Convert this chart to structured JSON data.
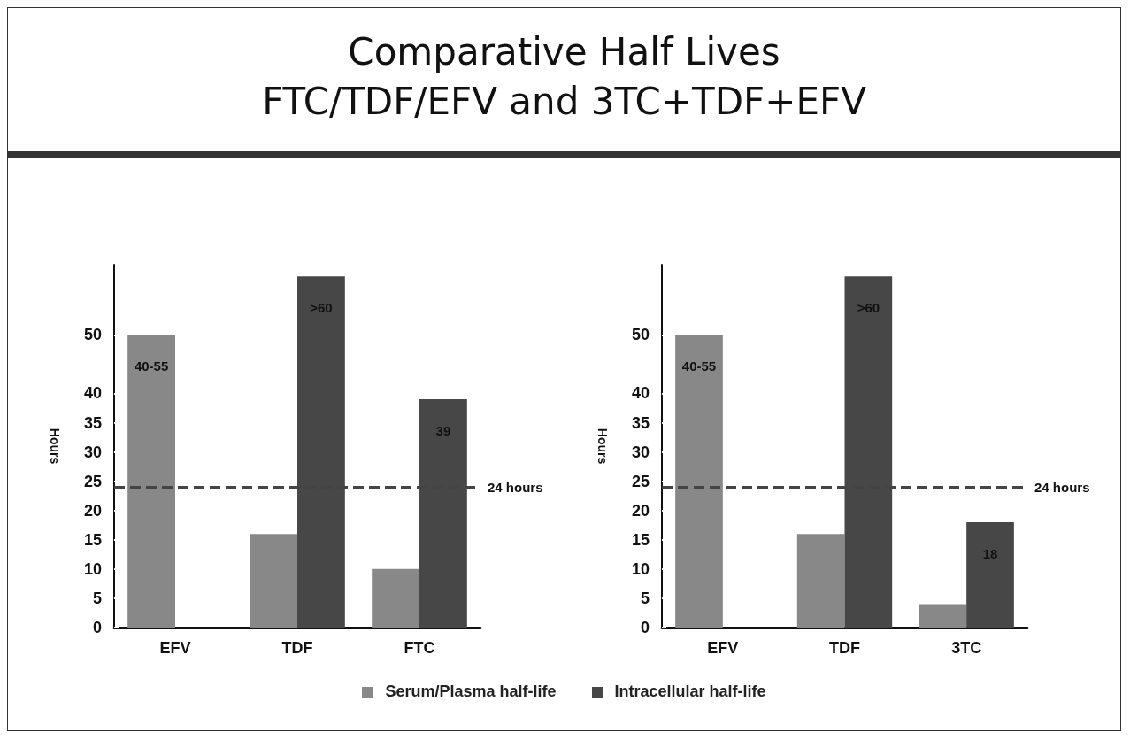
{
  "chart_data": [
    {
      "type": "bar",
      "title": "Comparative Half Lives",
      "subtitle": "FTC/TDF/EFV and 3TC+TDF+EFV",
      "ylabel": "Hours",
      "categories": [
        "EFV",
        "TDF",
        "FTC"
      ],
      "series": [
        {
          "name": "Serum/Plasma half-life",
          "color": "#888888",
          "values": [
            50,
            16,
            10
          ],
          "value_labels": [
            "40-55",
            null,
            null
          ]
        },
        {
          "name": "Intracellular half-life",
          "color": "#474747",
          "values": [
            null,
            60,
            39
          ],
          "value_labels": [
            null,
            ">60",
            "39"
          ]
        }
      ],
      "ylim": [
        0,
        62
      ],
      "yticks": [
        0,
        5,
        10,
        15,
        20,
        25,
        30,
        35,
        40,
        50
      ],
      "grid": false,
      "legend": "bottom",
      "ref_lines": [
        {
          "axis": "y",
          "value": 24,
          "label": "24 hours",
          "color": "#444444",
          "line_style": "dashed"
        }
      ]
    },
    {
      "type": "bar",
      "ylabel": "Hours",
      "categories": [
        "EFV",
        "TDF",
        "3TC"
      ],
      "series": [
        {
          "color": "#888888",
          "values": [
            50,
            16,
            4
          ],
          "value_labels": [
            "40-55",
            null,
            null
          ]
        },
        {
          "color": "#474747",
          "values": [
            null,
            60,
            18
          ],
          "value_labels": [
            null,
            ">60",
            "18"
          ]
        }
      ],
      "ylim": [
        0,
        62
      ],
      "yticks": [
        0,
        5,
        10,
        15,
        20,
        25,
        30,
        35,
        40,
        50
      ],
      "grid": false,
      "ref_lines": [
        {
          "axis": "y",
          "value": 24,
          "label": "24 hours",
          "color": "#444444",
          "line_style": "dashed"
        }
      ]
    }
  ]
}
